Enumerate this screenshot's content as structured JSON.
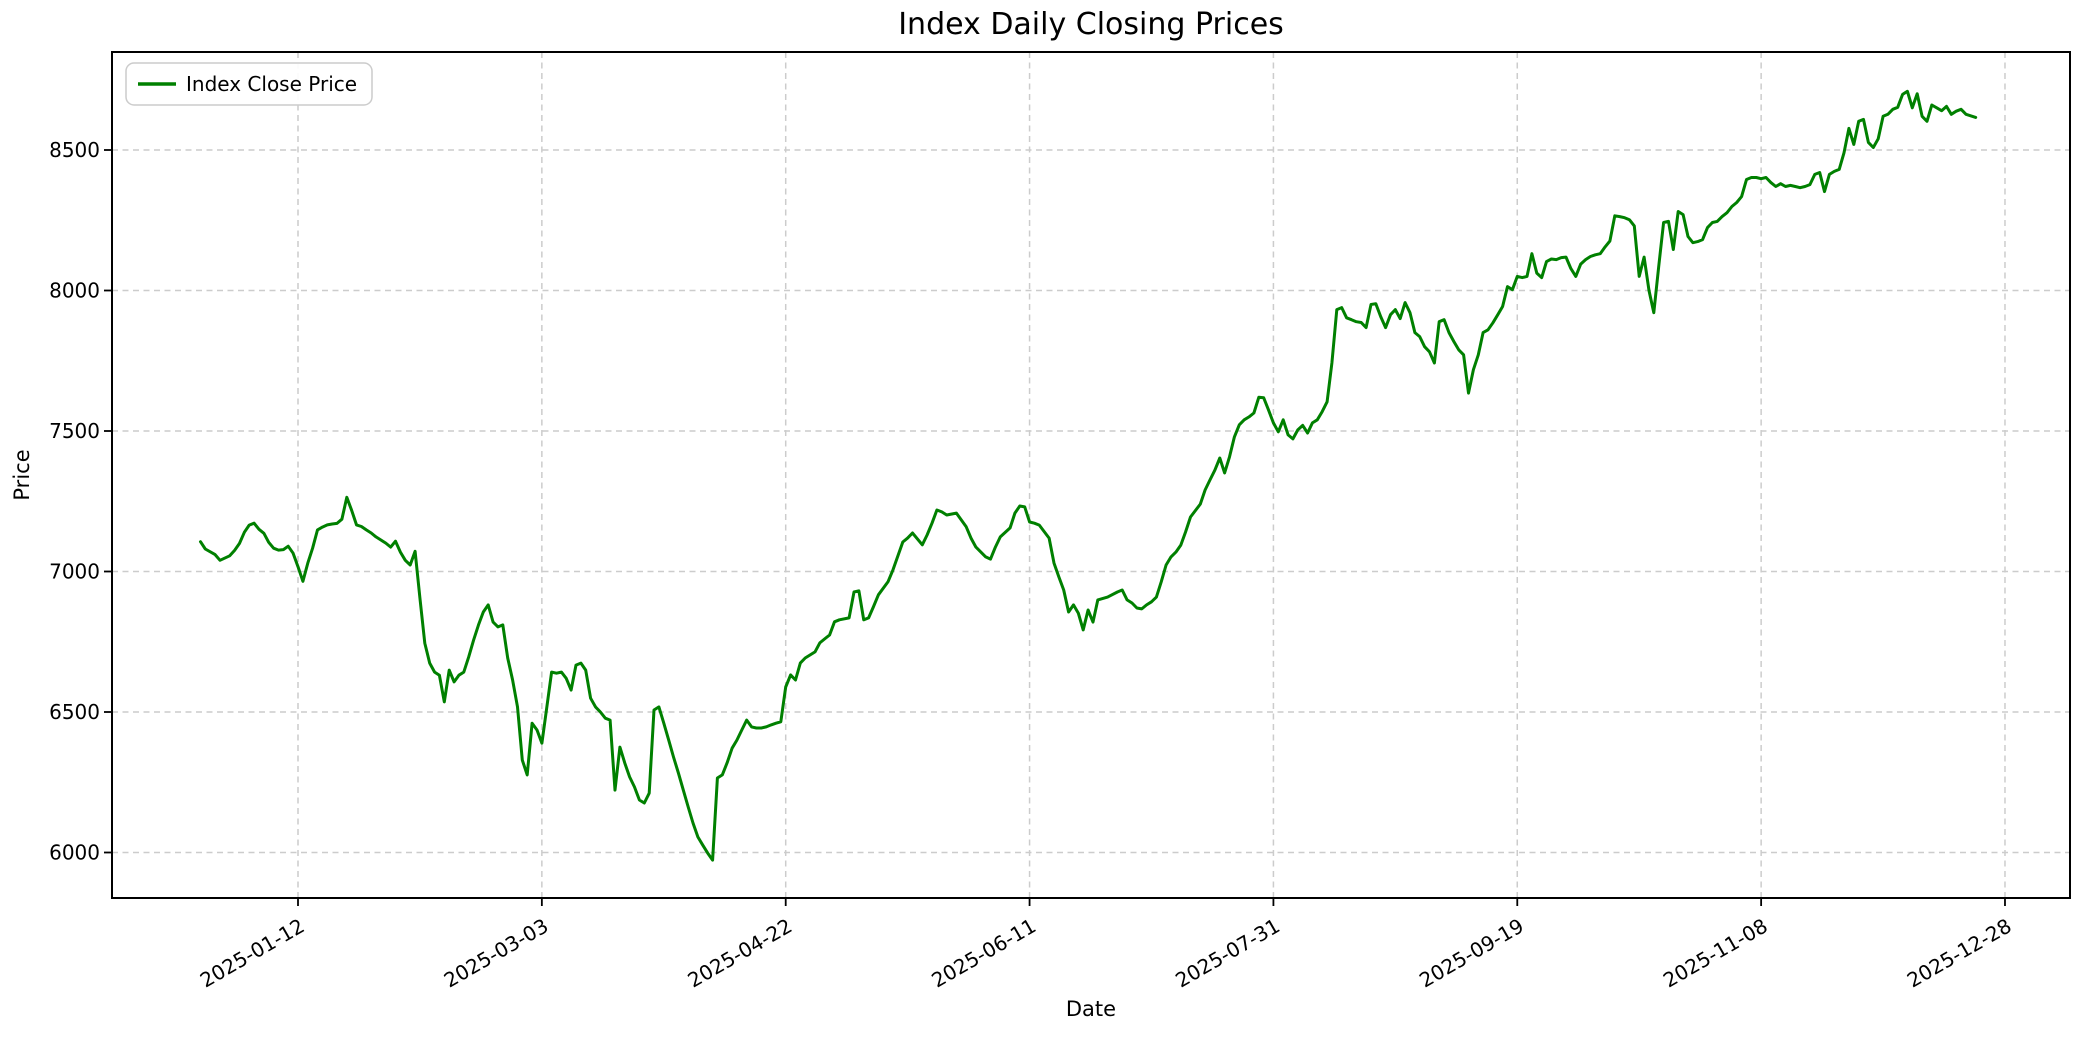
{
  "figure": {
    "title": "Index Daily Closing Prices"
  },
  "axes": {
    "xlabel": "Date",
    "ylabel": "Price"
  },
  "legend": {
    "label": "Index Close Price"
  },
  "chart_data": {
    "type": "line",
    "title": "Index Daily Closing Prices",
    "xlabel": "Date",
    "ylabel": "Price",
    "series_name": "Index Close Price",
    "line_color": "#008000",
    "grid": true,
    "grid_style": "dashed",
    "legend_position": "upper left",
    "x_tick_labels": [
      "2025-01-12",
      "2025-03-03",
      "2025-04-22",
      "2025-06-11",
      "2025-07-31",
      "2025-09-19",
      "2025-11-08",
      "2025-12-28"
    ],
    "y_ticks": [
      6000,
      6500,
      7000,
      7500,
      8000,
      8500
    ],
    "ylim": [
      5840,
      8850
    ],
    "points": [
      [
        "2024-12-23",
        7106
      ],
      [
        "2024-12-24",
        7080
      ],
      [
        "2024-12-26",
        7060
      ],
      [
        "2024-12-27",
        7040
      ],
      [
        "2024-12-29",
        7056
      ],
      [
        "2024-12-30",
        7075
      ],
      [
        "2024-12-31",
        7100
      ],
      [
        "2025-01-01",
        7140
      ],
      [
        "2025-01-02",
        7165
      ],
      [
        "2025-01-03",
        7172
      ],
      [
        "2025-01-04",
        7150
      ],
      [
        "2025-01-05",
        7136
      ],
      [
        "2025-01-06",
        7104
      ],
      [
        "2025-01-07",
        7083
      ],
      [
        "2025-01-08",
        7076
      ],
      [
        "2025-01-09",
        7078
      ],
      [
        "2025-01-10",
        7090
      ],
      [
        "2025-01-11",
        7065
      ],
      [
        "2025-01-12",
        7017
      ],
      [
        "2025-01-13",
        6965
      ],
      [
        "2025-01-14",
        7030
      ],
      [
        "2025-01-15",
        7083
      ],
      [
        "2025-01-16",
        7148
      ],
      [
        "2025-01-17",
        7158
      ],
      [
        "2025-01-18",
        7166
      ],
      [
        "2025-01-19",
        7169
      ],
      [
        "2025-01-20",
        7171
      ],
      [
        "2025-01-21",
        7186
      ],
      [
        "2025-01-22",
        7264
      ],
      [
        "2025-01-23",
        7218
      ],
      [
        "2025-01-24",
        7166
      ],
      [
        "2025-01-25",
        7160
      ],
      [
        "2025-01-26",
        7148
      ],
      [
        "2025-01-27",
        7137
      ],
      [
        "2025-01-28",
        7123
      ],
      [
        "2025-01-29",
        7112
      ],
      [
        "2025-01-30",
        7101
      ],
      [
        "2025-01-31",
        7087
      ],
      [
        "2025-02-01",
        7108
      ],
      [
        "2025-02-02",
        7069
      ],
      [
        "2025-02-03",
        7040
      ],
      [
        "2025-02-04",
        7023
      ],
      [
        "2025-02-05",
        7072
      ],
      [
        "2025-02-06",
        6906
      ],
      [
        "2025-02-07",
        6745
      ],
      [
        "2025-02-08",
        6674
      ],
      [
        "2025-02-09",
        6642
      ],
      [
        "2025-02-10",
        6631
      ],
      [
        "2025-02-11",
        6536
      ],
      [
        "2025-02-12",
        6649
      ],
      [
        "2025-02-13",
        6607
      ],
      [
        "2025-02-14",
        6631
      ],
      [
        "2025-02-15",
        6642
      ],
      [
        "2025-02-16",
        6696
      ],
      [
        "2025-02-17",
        6756
      ],
      [
        "2025-02-18",
        6810
      ],
      [
        "2025-02-19",
        6856
      ],
      [
        "2025-02-20",
        6881
      ],
      [
        "2025-02-21",
        6820
      ],
      [
        "2025-02-22",
        6803
      ],
      [
        "2025-02-23",
        6810
      ],
      [
        "2025-02-24",
        6692
      ],
      [
        "2025-02-25",
        6614
      ],
      [
        "2025-02-26",
        6518
      ],
      [
        "2025-02-27",
        6329
      ],
      [
        "2025-02-28",
        6276
      ],
      [
        "2025-03-01",
        6460
      ],
      [
        "2025-03-02",
        6436
      ],
      [
        "2025-03-03",
        6389
      ],
      [
        "2025-03-04",
        6514
      ],
      [
        "2025-03-05",
        6642
      ],
      [
        "2025-03-06",
        6638
      ],
      [
        "2025-03-07",
        6642
      ],
      [
        "2025-03-08",
        6620
      ],
      [
        "2025-03-09",
        6578
      ],
      [
        "2025-03-10",
        6667
      ],
      [
        "2025-03-11",
        6674
      ],
      [
        "2025-03-12",
        6649
      ],
      [
        "2025-03-13",
        6549
      ],
      [
        "2025-03-14",
        6518
      ],
      [
        "2025-03-15",
        6500
      ],
      [
        "2025-03-16",
        6478
      ],
      [
        "2025-03-17",
        6471
      ],
      [
        "2025-03-18",
        6222
      ],
      [
        "2025-03-19",
        6375
      ],
      [
        "2025-03-20",
        6318
      ],
      [
        "2025-03-21",
        6269
      ],
      [
        "2025-03-22",
        6233
      ],
      [
        "2025-03-23",
        6187
      ],
      [
        "2025-03-24",
        6176
      ],
      [
        "2025-03-25",
        6211
      ],
      [
        "2025-03-26",
        6507
      ],
      [
        "2025-03-27",
        6518
      ],
      [
        "2025-03-28",
        6460
      ],
      [
        "2025-03-29",
        6400
      ],
      [
        "2025-03-30",
        6340
      ],
      [
        "2025-03-31",
        6283
      ],
      [
        "2025-04-01",
        6222
      ],
      [
        "2025-04-02",
        6162
      ],
      [
        "2025-04-03",
        6105
      ],
      [
        "2025-04-04",
        6055
      ],
      [
        "2025-04-05",
        6026
      ],
      [
        "2025-04-06",
        5998
      ],
      [
        "2025-04-07",
        5973
      ],
      [
        "2025-04-08",
        6265
      ],
      [
        "2025-04-09",
        6276
      ],
      [
        "2025-04-10",
        6320
      ],
      [
        "2025-04-11",
        6371
      ],
      [
        "2025-04-12",
        6400
      ],
      [
        "2025-04-13",
        6436
      ],
      [
        "2025-04-14",
        6471
      ],
      [
        "2025-04-15",
        6447
      ],
      [
        "2025-04-16",
        6443
      ],
      [
        "2025-04-17",
        6443
      ],
      [
        "2025-04-18",
        6447
      ],
      [
        "2025-04-19",
        6454
      ],
      [
        "2025-04-20",
        6460
      ],
      [
        "2025-04-21",
        6465
      ],
      [
        "2025-04-22",
        6589
      ],
      [
        "2025-04-23",
        6632
      ],
      [
        "2025-04-24",
        6614
      ],
      [
        "2025-04-25",
        6674
      ],
      [
        "2025-04-26",
        6692
      ],
      [
        "2025-04-28",
        6714
      ],
      [
        "2025-04-29",
        6746
      ],
      [
        "2025-04-30",
        6760
      ],
      [
        "2025-05-01",
        6774
      ],
      [
        "2025-05-02",
        6821
      ],
      [
        "2025-05-03",
        6828
      ],
      [
        "2025-05-05",
        6835
      ],
      [
        "2025-05-06",
        6927
      ],
      [
        "2025-05-07",
        6931
      ],
      [
        "2025-05-08",
        6828
      ],
      [
        "2025-05-09",
        6835
      ],
      [
        "2025-05-10",
        6875
      ],
      [
        "2025-05-11",
        6917
      ],
      [
        "2025-05-13",
        6964
      ],
      [
        "2025-05-14",
        7006
      ],
      [
        "2025-05-16",
        7105
      ],
      [
        "2025-05-17",
        7119
      ],
      [
        "2025-05-18",
        7137
      ],
      [
        "2025-05-20",
        7095
      ],
      [
        "2025-05-21",
        7130
      ],
      [
        "2025-05-22",
        7172
      ],
      [
        "2025-05-23",
        7219
      ],
      [
        "2025-05-24",
        7212
      ],
      [
        "2025-05-25",
        7201
      ],
      [
        "2025-05-27",
        7208
      ],
      [
        "2025-05-29",
        7159
      ],
      [
        "2025-05-30",
        7119
      ],
      [
        "2025-05-31",
        7087
      ],
      [
        "2025-06-02",
        7052
      ],
      [
        "2025-06-03",
        7044
      ],
      [
        "2025-06-04",
        7087
      ],
      [
        "2025-06-05",
        7123
      ],
      [
        "2025-06-07",
        7155
      ],
      [
        "2025-06-08",
        7208
      ],
      [
        "2025-06-09",
        7233
      ],
      [
        "2025-06-10",
        7230
      ],
      [
        "2025-06-11",
        7176
      ],
      [
        "2025-06-12",
        7172
      ],
      [
        "2025-06-13",
        7165
      ],
      [
        "2025-06-15",
        7119
      ],
      [
        "2025-06-16",
        7030
      ],
      [
        "2025-06-17",
        6981
      ],
      [
        "2025-06-18",
        6934
      ],
      [
        "2025-06-19",
        6856
      ],
      [
        "2025-06-20",
        6881
      ],
      [
        "2025-06-21",
        6852
      ],
      [
        "2025-06-22",
        6792
      ],
      [
        "2025-06-23",
        6863
      ],
      [
        "2025-06-24",
        6820
      ],
      [
        "2025-06-25",
        6899
      ],
      [
        "2025-06-27",
        6909
      ],
      [
        "2025-06-29",
        6927
      ],
      [
        "2025-06-30",
        6934
      ],
      [
        "2025-07-01",
        6899
      ],
      [
        "2025-07-02",
        6888
      ],
      [
        "2025-07-03",
        6870
      ],
      [
        "2025-07-04",
        6867
      ],
      [
        "2025-07-05",
        6881
      ],
      [
        "2025-07-06",
        6892
      ],
      [
        "2025-07-07",
        6909
      ],
      [
        "2025-07-08",
        6963
      ],
      [
        "2025-07-09",
        7023
      ],
      [
        "2025-07-10",
        7052
      ],
      [
        "2025-07-11",
        7069
      ],
      [
        "2025-07-12",
        7094
      ],
      [
        "2025-07-13",
        7141
      ],
      [
        "2025-07-14",
        7194
      ],
      [
        "2025-07-16",
        7240
      ],
      [
        "2025-07-17",
        7290
      ],
      [
        "2025-07-18",
        7326
      ],
      [
        "2025-07-19",
        7361
      ],
      [
        "2025-07-20",
        7404
      ],
      [
        "2025-07-21",
        7351
      ],
      [
        "2025-07-22",
        7408
      ],
      [
        "2025-07-23",
        7479
      ],
      [
        "2025-07-24",
        7522
      ],
      [
        "2025-07-25",
        7540
      ],
      [
        "2025-07-26",
        7550
      ],
      [
        "2025-07-27",
        7564
      ],
      [
        "2025-07-28",
        7620
      ],
      [
        "2025-07-29",
        7618
      ],
      [
        "2025-07-30",
        7575
      ],
      [
        "2025-07-31",
        7529
      ],
      [
        "2025-08-01",
        7497
      ],
      [
        "2025-08-02",
        7540
      ],
      [
        "2025-08-03",
        7486
      ],
      [
        "2025-08-04",
        7472
      ],
      [
        "2025-08-05",
        7504
      ],
      [
        "2025-08-06",
        7520
      ],
      [
        "2025-08-07",
        7493
      ],
      [
        "2025-08-08",
        7529
      ],
      [
        "2025-08-09",
        7540
      ],
      [
        "2025-08-10",
        7569
      ],
      [
        "2025-08-11",
        7604
      ],
      [
        "2025-08-12",
        7742
      ],
      [
        "2025-08-13",
        7932
      ],
      [
        "2025-08-14",
        7939
      ],
      [
        "2025-08-15",
        7903
      ],
      [
        "2025-08-16",
        7896
      ],
      [
        "2025-08-17",
        7889
      ],
      [
        "2025-08-18",
        7886
      ],
      [
        "2025-08-19",
        7868
      ],
      [
        "2025-08-20",
        7950
      ],
      [
        "2025-08-21",
        7953
      ],
      [
        "2025-08-22",
        7907
      ],
      [
        "2025-08-23",
        7868
      ],
      [
        "2025-08-24",
        7914
      ],
      [
        "2025-08-25",
        7932
      ],
      [
        "2025-08-26",
        7900
      ],
      [
        "2025-08-27",
        7957
      ],
      [
        "2025-08-28",
        7921
      ],
      [
        "2025-08-29",
        7850
      ],
      [
        "2025-08-30",
        7836
      ],
      [
        "2025-08-31",
        7800
      ],
      [
        "2025-09-01",
        7782
      ],
      [
        "2025-09-02",
        7742
      ],
      [
        "2025-09-03",
        7889
      ],
      [
        "2025-09-04",
        7896
      ],
      [
        "2025-09-05",
        7850
      ],
      [
        "2025-09-06",
        7818
      ],
      [
        "2025-09-07",
        7789
      ],
      [
        "2025-09-08",
        7771
      ],
      [
        "2025-09-09",
        7635
      ],
      [
        "2025-09-10",
        7718
      ],
      [
        "2025-09-11",
        7771
      ],
      [
        "2025-09-12",
        7850
      ],
      [
        "2025-09-13",
        7860
      ],
      [
        "2025-09-14",
        7885
      ],
      [
        "2025-09-15",
        7914
      ],
      [
        "2025-09-16",
        7943
      ],
      [
        "2025-09-17",
        8014
      ],
      [
        "2025-09-18",
        8003
      ],
      [
        "2025-09-19",
        8050
      ],
      [
        "2025-09-20",
        8046
      ],
      [
        "2025-09-21",
        8050
      ],
      [
        "2025-09-22",
        8131
      ],
      [
        "2025-09-23",
        8062
      ],
      [
        "2025-09-24",
        8046
      ],
      [
        "2025-09-25",
        8103
      ],
      [
        "2025-09-26",
        8112
      ],
      [
        "2025-09-27",
        8110
      ],
      [
        "2025-09-28",
        8117
      ],
      [
        "2025-09-29",
        8119
      ],
      [
        "2025-09-30",
        8078
      ],
      [
        "2025-10-01",
        8050
      ],
      [
        "2025-10-02",
        8094
      ],
      [
        "2025-10-03",
        8110
      ],
      [
        "2025-10-04",
        8121
      ],
      [
        "2025-10-05",
        8127
      ],
      [
        "2025-10-06",
        8131
      ],
      [
        "2025-10-07",
        8155
      ],
      [
        "2025-10-08",
        8176
      ],
      [
        "2025-10-09",
        8266
      ],
      [
        "2025-10-10",
        8263
      ],
      [
        "2025-10-11",
        8259
      ],
      [
        "2025-10-12",
        8252
      ],
      [
        "2025-10-13",
        8230
      ],
      [
        "2025-10-14",
        8050
      ],
      [
        "2025-10-15",
        8119
      ],
      [
        "2025-10-16",
        8000
      ],
      [
        "2025-10-17",
        7921
      ],
      [
        "2025-10-18",
        8085
      ],
      [
        "2025-10-19",
        8242
      ],
      [
        "2025-10-20",
        8246
      ],
      [
        "2025-10-21",
        8146
      ],
      [
        "2025-10-22",
        8281
      ],
      [
        "2025-10-23",
        8270
      ],
      [
        "2025-10-24",
        8192
      ],
      [
        "2025-10-25",
        8170
      ],
      [
        "2025-10-26",
        8174
      ],
      [
        "2025-10-27",
        8181
      ],
      [
        "2025-10-28",
        8224
      ],
      [
        "2025-10-29",
        8242
      ],
      [
        "2025-10-30",
        8246
      ],
      [
        "2025-10-31",
        8263
      ],
      [
        "2025-11-01",
        8277
      ],
      [
        "2025-11-02",
        8299
      ],
      [
        "2025-11-03",
        8313
      ],
      [
        "2025-11-04",
        8334
      ],
      [
        "2025-11-05",
        8395
      ],
      [
        "2025-11-06",
        8402
      ],
      [
        "2025-11-07",
        8402
      ],
      [
        "2025-11-08",
        8398
      ],
      [
        "2025-11-09",
        8402
      ],
      [
        "2025-11-10",
        8384
      ],
      [
        "2025-11-11",
        8370
      ],
      [
        "2025-11-12",
        8380
      ],
      [
        "2025-11-13",
        8370
      ],
      [
        "2025-11-14",
        8374
      ],
      [
        "2025-11-15",
        8370
      ],
      [
        "2025-11-16",
        8366
      ],
      [
        "2025-11-17",
        8370
      ],
      [
        "2025-11-18",
        8377
      ],
      [
        "2025-11-19",
        8413
      ],
      [
        "2025-11-20",
        8420
      ],
      [
        "2025-11-21",
        8352
      ],
      [
        "2025-11-22",
        8413
      ],
      [
        "2025-11-23",
        8424
      ],
      [
        "2025-11-24",
        8431
      ],
      [
        "2025-11-25",
        8490
      ],
      [
        "2025-11-26",
        8577
      ],
      [
        "2025-11-27",
        8520
      ],
      [
        "2025-11-28",
        8602
      ],
      [
        "2025-11-29",
        8609
      ],
      [
        "2025-11-30",
        8527
      ],
      [
        "2025-12-01",
        8509
      ],
      [
        "2025-12-02",
        8540
      ],
      [
        "2025-12-03",
        8620
      ],
      [
        "2025-12-04",
        8627
      ],
      [
        "2025-12-05",
        8645
      ],
      [
        "2025-12-06",
        8652
      ],
      [
        "2025-12-07",
        8698
      ],
      [
        "2025-12-08",
        8709
      ],
      [
        "2025-12-09",
        8650
      ],
      [
        "2025-12-10",
        8700
      ],
      [
        "2025-12-11",
        8620
      ],
      [
        "2025-12-12",
        8602
      ],
      [
        "2025-12-13",
        8660
      ],
      [
        "2025-12-14",
        8650
      ],
      [
        "2025-12-15",
        8640
      ],
      [
        "2025-12-16",
        8655
      ],
      [
        "2025-12-17",
        8627
      ],
      [
        "2025-12-18",
        8638
      ],
      [
        "2025-12-19",
        8645
      ],
      [
        "2025-12-20",
        8627
      ],
      [
        "2025-12-22",
        8616
      ]
    ]
  }
}
